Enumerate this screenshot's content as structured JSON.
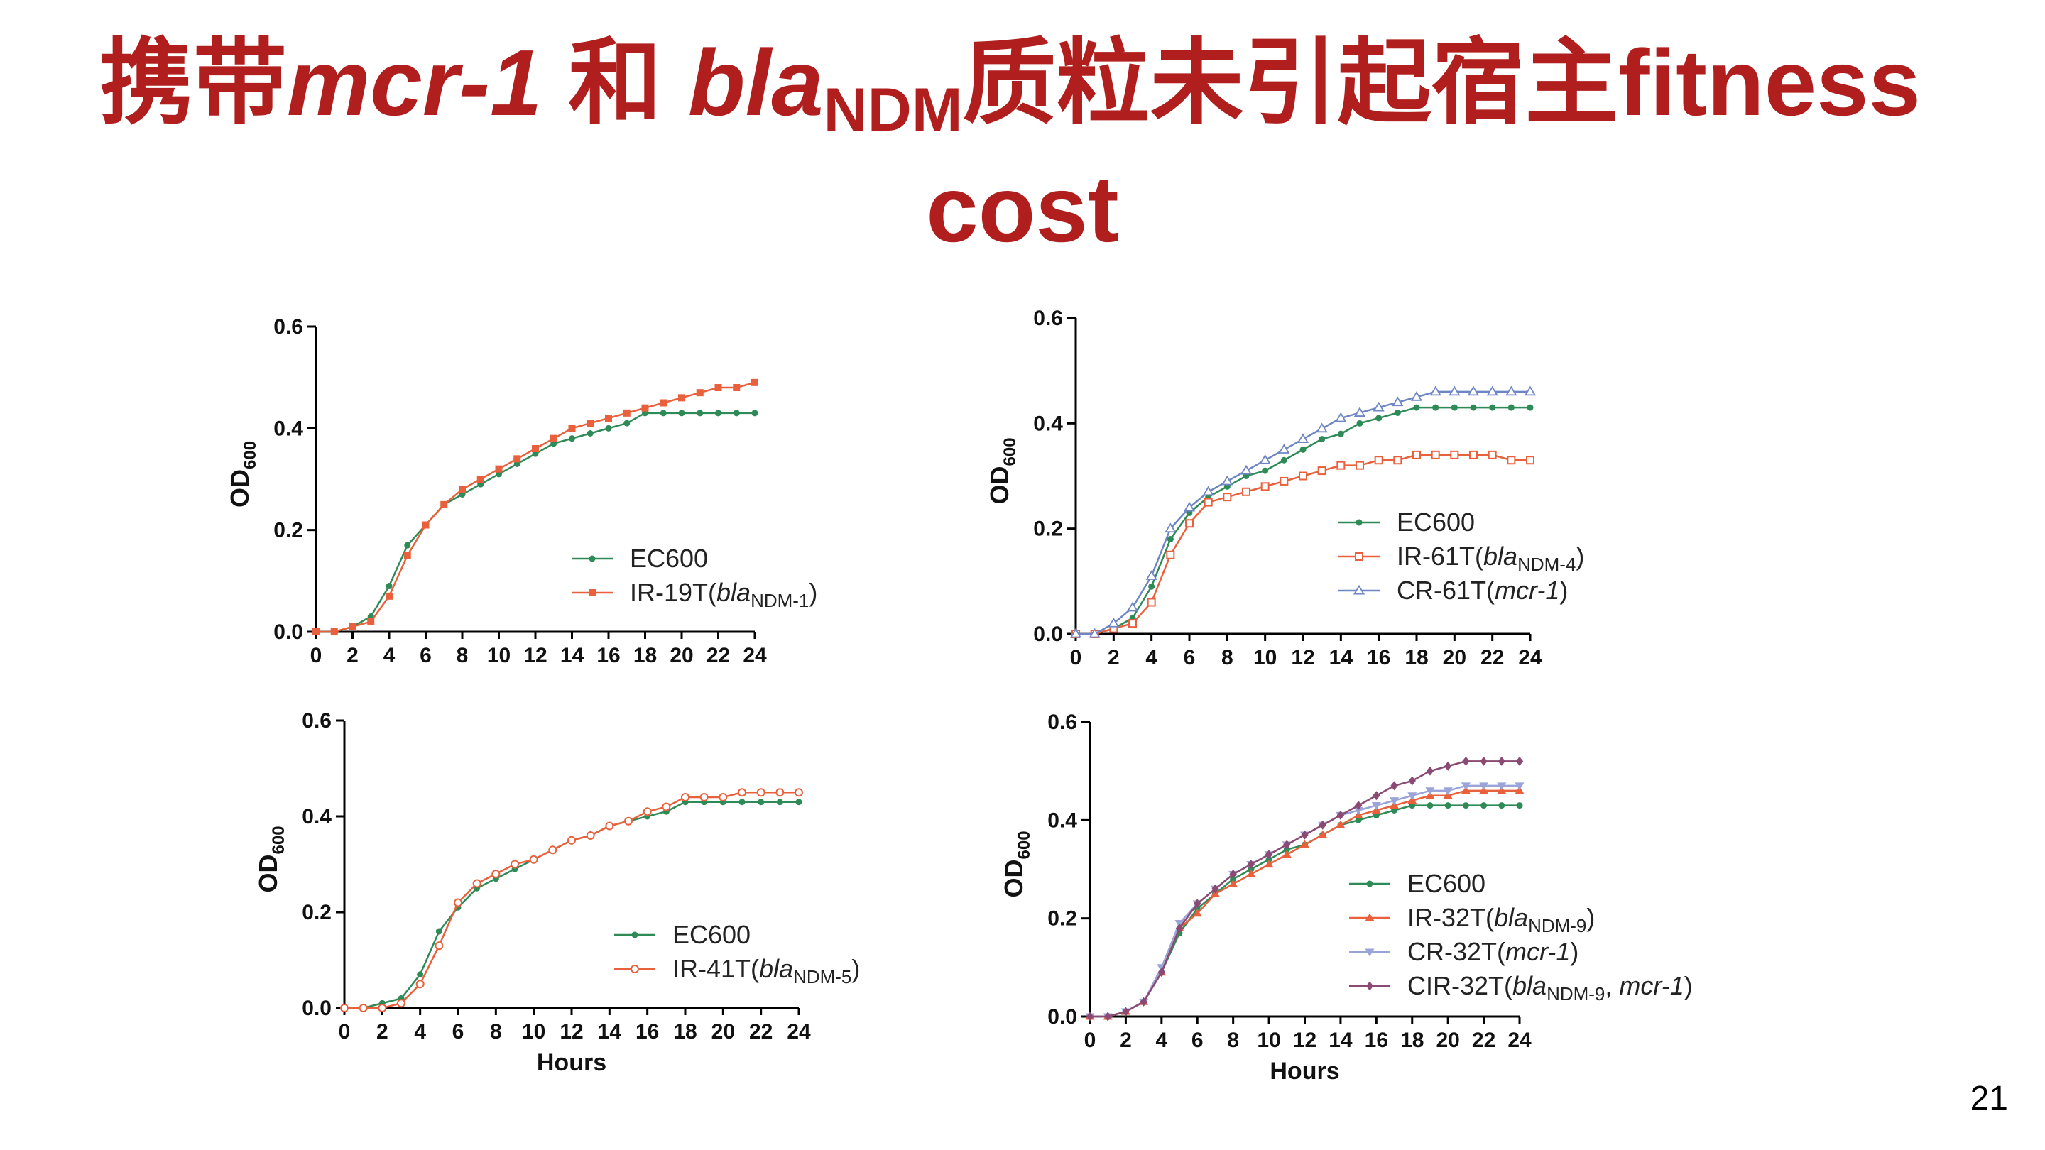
{
  "slide": {
    "title_part1": "携带",
    "title_gene1": "mcr-1",
    "title_part2": " 和 ",
    "title_gene2": "bla",
    "title_gene2_sub": "NDM",
    "title_part3": "质粒未引起宿主fitness",
    "title_line2": "cost",
    "page_number": "21",
    "title_color": "#b01e1e"
  },
  "chart_data": [
    {
      "type": "line",
      "panel": "top-left",
      "xlabel": "",
      "ylabel": "OD",
      "ylabel_sub": "600",
      "xlim": [
        0,
        24
      ],
      "ylim": [
        0,
        0.6
      ],
      "xticks": [
        "0",
        "2",
        "4",
        "6",
        "8",
        "10",
        "12",
        "14",
        "16",
        "18",
        "20",
        "22",
        "24"
      ],
      "yticks": [
        "0.0",
        "0.2",
        "0.4",
        "0.6"
      ],
      "legend_placement": "lower-right",
      "series": [
        {
          "name": "EC600",
          "color": "#2e8b57",
          "marker": "dot",
          "x": [
            0,
            1,
            2,
            3,
            4,
            5,
            6,
            7,
            8,
            9,
            10,
            11,
            12,
            13,
            14,
            15,
            16,
            17,
            18,
            19,
            20,
            21,
            22,
            23,
            24
          ],
          "values": [
            0.0,
            0.0,
            0.01,
            0.03,
            0.09,
            0.17,
            0.21,
            0.25,
            0.27,
            0.29,
            0.31,
            0.33,
            0.35,
            0.37,
            0.38,
            0.39,
            0.4,
            0.41,
            0.43,
            0.43,
            0.43,
            0.43,
            0.43,
            0.43,
            0.43
          ]
        },
        {
          "name": "IR-19T(blaNDM-1)",
          "name_parts": [
            "IR-19T(",
            "bla",
            "NDM-1",
            ")"
          ],
          "color": "#e8613c",
          "marker": "square",
          "x": [
            0,
            1,
            2,
            3,
            4,
            5,
            6,
            7,
            8,
            9,
            10,
            11,
            12,
            13,
            14,
            15,
            16,
            17,
            18,
            19,
            20,
            21,
            22,
            23,
            24
          ],
          "values": [
            0.0,
            0.0,
            0.01,
            0.02,
            0.07,
            0.15,
            0.21,
            0.25,
            0.28,
            0.3,
            0.32,
            0.34,
            0.36,
            0.38,
            0.4,
            0.41,
            0.42,
            0.43,
            0.44,
            0.45,
            0.46,
            0.47,
            0.48,
            0.48,
            0.49
          ]
        }
      ]
    },
    {
      "type": "line",
      "panel": "top-right",
      "xlabel": "",
      "ylabel": "OD",
      "ylabel_sub": "600",
      "xlim": [
        0,
        24
      ],
      "ylim": [
        0,
        0.6
      ],
      "xticks": [
        "0",
        "2",
        "4",
        "6",
        "8",
        "10",
        "12",
        "14",
        "16",
        "18",
        "20",
        "22",
        "24"
      ],
      "yticks": [
        "0.0",
        "0.2",
        "0.4",
        "0.6"
      ],
      "legend_placement": "lower-right",
      "series": [
        {
          "name": "EC600",
          "color": "#2e8b57",
          "marker": "dot",
          "x": [
            0,
            1,
            2,
            3,
            4,
            5,
            6,
            7,
            8,
            9,
            10,
            11,
            12,
            13,
            14,
            15,
            16,
            17,
            18,
            19,
            20,
            21,
            22,
            23,
            24
          ],
          "values": [
            0.0,
            0.0,
            0.01,
            0.03,
            0.09,
            0.18,
            0.23,
            0.26,
            0.28,
            0.3,
            0.31,
            0.33,
            0.35,
            0.37,
            0.38,
            0.4,
            0.41,
            0.42,
            0.43,
            0.43,
            0.43,
            0.43,
            0.43,
            0.43,
            0.43
          ]
        },
        {
          "name": "IR-61T(blaNDM-4)",
          "name_parts": [
            "IR-61T(",
            "bla",
            "NDM-4",
            ")"
          ],
          "color": "#e8613c",
          "marker": "open-square",
          "x": [
            0,
            1,
            2,
            3,
            4,
            5,
            6,
            7,
            8,
            9,
            10,
            11,
            12,
            13,
            14,
            15,
            16,
            17,
            18,
            19,
            20,
            21,
            22,
            23,
            24
          ],
          "values": [
            0.0,
            0.0,
            0.01,
            0.02,
            0.06,
            0.15,
            0.21,
            0.25,
            0.26,
            0.27,
            0.28,
            0.29,
            0.3,
            0.31,
            0.32,
            0.32,
            0.33,
            0.33,
            0.34,
            0.34,
            0.34,
            0.34,
            0.34,
            0.33,
            0.33
          ]
        },
        {
          "name": "CR-61T(mcr-1)",
          "name_parts": [
            "CR-61T(",
            "mcr-1",
            "",
            ")"
          ],
          "color": "#6f86c4",
          "marker": "open-triangle",
          "x": [
            0,
            1,
            2,
            3,
            4,
            5,
            6,
            7,
            8,
            9,
            10,
            11,
            12,
            13,
            14,
            15,
            16,
            17,
            18,
            19,
            20,
            21,
            22,
            23,
            24
          ],
          "values": [
            0.0,
            0.0,
            0.02,
            0.05,
            0.11,
            0.2,
            0.24,
            0.27,
            0.29,
            0.31,
            0.33,
            0.35,
            0.37,
            0.39,
            0.41,
            0.42,
            0.43,
            0.44,
            0.45,
            0.46,
            0.46,
            0.46,
            0.46,
            0.46,
            0.46
          ]
        }
      ]
    },
    {
      "type": "line",
      "panel": "bottom-left",
      "xlabel": "Hours",
      "ylabel": "OD",
      "ylabel_sub": "600",
      "xlim": [
        0,
        24
      ],
      "ylim": [
        0,
        0.6
      ],
      "xticks": [
        "0",
        "2",
        "4",
        "6",
        "8",
        "10",
        "12",
        "14",
        "16",
        "18",
        "20",
        "22",
        "24"
      ],
      "yticks": [
        "0.0",
        "0.2",
        "0.4",
        "0.6"
      ],
      "legend_placement": "lower-right",
      "series": [
        {
          "name": "EC600",
          "color": "#2e8b57",
          "marker": "dot",
          "x": [
            0,
            1,
            2,
            3,
            4,
            5,
            6,
            7,
            8,
            9,
            10,
            11,
            12,
            13,
            14,
            15,
            16,
            17,
            18,
            19,
            20,
            21,
            22,
            23,
            24
          ],
          "values": [
            0.0,
            0.0,
            0.01,
            0.02,
            0.07,
            0.16,
            0.21,
            0.25,
            0.27,
            0.29,
            0.31,
            0.33,
            0.35,
            0.36,
            0.38,
            0.39,
            0.4,
            0.41,
            0.43,
            0.43,
            0.43,
            0.43,
            0.43,
            0.43,
            0.43
          ]
        },
        {
          "name": "IR-41T(blaNDM-5)",
          "name_parts": [
            "IR-41T(",
            "bla",
            "NDM-5",
            ")"
          ],
          "color": "#e8613c",
          "marker": "open-circle",
          "x": [
            0,
            1,
            2,
            3,
            4,
            5,
            6,
            7,
            8,
            9,
            10,
            11,
            12,
            13,
            14,
            15,
            16,
            17,
            18,
            19,
            20,
            21,
            22,
            23,
            24
          ],
          "values": [
            0.0,
            0.0,
            0.0,
            0.01,
            0.05,
            0.13,
            0.22,
            0.26,
            0.28,
            0.3,
            0.31,
            0.33,
            0.35,
            0.36,
            0.38,
            0.39,
            0.41,
            0.42,
            0.44,
            0.44,
            0.44,
            0.45,
            0.45,
            0.45,
            0.45
          ]
        }
      ]
    },
    {
      "type": "line",
      "panel": "bottom-right",
      "xlabel": "Hours",
      "ylabel": "OD",
      "ylabel_sub": "600",
      "xlim": [
        0,
        24
      ],
      "ylim": [
        0,
        0.6
      ],
      "xticks": [
        "0",
        "2",
        "4",
        "6",
        "8",
        "10",
        "12",
        "14",
        "16",
        "18",
        "20",
        "22",
        "24"
      ],
      "yticks": [
        "0.0",
        "0.2",
        "0.4",
        "0.6"
      ],
      "legend_placement": "lower-right",
      "series": [
        {
          "name": "EC600",
          "color": "#2e8b57",
          "marker": "dot",
          "x": [
            0,
            1,
            2,
            3,
            4,
            5,
            6,
            7,
            8,
            9,
            10,
            11,
            12,
            13,
            14,
            15,
            16,
            17,
            18,
            19,
            20,
            21,
            22,
            23,
            24
          ],
          "values": [
            0.0,
            0.0,
            0.01,
            0.03,
            0.09,
            0.17,
            0.22,
            0.25,
            0.28,
            0.3,
            0.32,
            0.34,
            0.35,
            0.37,
            0.39,
            0.4,
            0.41,
            0.42,
            0.43,
            0.43,
            0.43,
            0.43,
            0.43,
            0.43,
            0.43
          ]
        },
        {
          "name": "IR-32T(blaNDM-9)",
          "name_parts": [
            "IR-32T(",
            "bla",
            "NDM-9",
            ")"
          ],
          "color": "#e8613c",
          "marker": "triangle",
          "x": [
            0,
            1,
            2,
            3,
            4,
            5,
            6,
            7,
            8,
            9,
            10,
            11,
            12,
            13,
            14,
            15,
            16,
            17,
            18,
            19,
            20,
            21,
            22,
            23,
            24
          ],
          "values": [
            0.0,
            0.0,
            0.01,
            0.03,
            0.09,
            0.18,
            0.21,
            0.25,
            0.27,
            0.29,
            0.31,
            0.33,
            0.35,
            0.37,
            0.39,
            0.41,
            0.42,
            0.43,
            0.44,
            0.45,
            0.45,
            0.46,
            0.46,
            0.46,
            0.46
          ]
        },
        {
          "name": "CR-32T(mcr-1)",
          "name_parts": [
            "CR-32T(",
            "mcr-1",
            "",
            ")"
          ],
          "color": "#9aa4d8",
          "marker": "down-triangle",
          "x": [
            0,
            1,
            2,
            3,
            4,
            5,
            6,
            7,
            8,
            9,
            10,
            11,
            12,
            13,
            14,
            15,
            16,
            17,
            18,
            19,
            20,
            21,
            22,
            23,
            24
          ],
          "values": [
            0.0,
            0.0,
            0.01,
            0.03,
            0.1,
            0.19,
            0.23,
            0.26,
            0.29,
            0.31,
            0.33,
            0.35,
            0.37,
            0.39,
            0.41,
            0.42,
            0.43,
            0.44,
            0.45,
            0.46,
            0.46,
            0.47,
            0.47,
            0.47,
            0.47
          ]
        },
        {
          "name": "CIR-32T(blaNDM-9, mcr-1)",
          "name_parts": [
            "CIR-32T(",
            "bla",
            "NDM-9",
            ", ",
            "mcr-1",
            ")"
          ],
          "color": "#8a4a73",
          "marker": "diamond",
          "x": [
            0,
            1,
            2,
            3,
            4,
            5,
            6,
            7,
            8,
            9,
            10,
            11,
            12,
            13,
            14,
            15,
            16,
            17,
            18,
            19,
            20,
            21,
            22,
            23,
            24
          ],
          "values": [
            0.0,
            0.0,
            0.01,
            0.03,
            0.09,
            0.18,
            0.23,
            0.26,
            0.29,
            0.31,
            0.33,
            0.35,
            0.37,
            0.39,
            0.41,
            0.43,
            0.45,
            0.47,
            0.48,
            0.5,
            0.51,
            0.52,
            0.52,
            0.52,
            0.52
          ]
        }
      ]
    }
  ]
}
